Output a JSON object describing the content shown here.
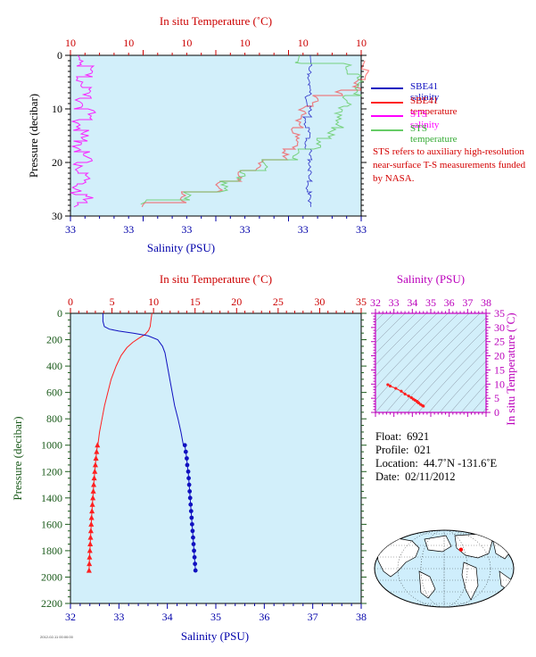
{
  "chart_data": [
    {
      "type": "line",
      "panel": "surface-profile",
      "top_xlabel": "In situ Temperature (˚C)",
      "top_ticklabels": [
        "10",
        "10",
        "10",
        "10",
        "10",
        "10"
      ],
      "bottom_xlabel": "Salinity (PSU)",
      "bottom_ticklabels": [
        "33",
        "33",
        "33",
        "33",
        "33",
        "33"
      ],
      "ylabel": "Pressure (decibar)",
      "y_ticks": [
        0,
        10,
        20,
        30
      ],
      "ylim": [
        0,
        30
      ],
      "series": [
        {
          "name": "SBE41 salinity",
          "axis": "bottom",
          "color": "#1010c0",
          "points": [
            [
              3.3,
              1.5
            ],
            [
              3.27,
              3.5
            ],
            [
              3.3,
              5.5
            ],
            [
              3.25,
              7.5
            ],
            [
              3.3,
              9.5
            ],
            [
              3.22,
              11.5
            ],
            [
              3.28,
              13.5
            ],
            [
              3.24,
              15.5
            ],
            [
              3.3,
              17.5
            ],
            [
              3.29,
              19.5
            ],
            [
              3.3,
              21.5
            ],
            [
              3.26,
              23.5
            ],
            [
              3.29,
              25.5
            ],
            [
              3.3,
              27.5
            ]
          ]
        },
        {
          "name": "SBE41 temperature",
          "axis": "top",
          "color": "#ff2020",
          "points": [
            [
              4.05,
              2.5
            ],
            [
              3.95,
              4.5
            ],
            [
              3.7,
              6.5
            ],
            [
              3.35,
              7.5
            ],
            [
              3.2,
              9.5
            ],
            [
              3.15,
              11.5
            ],
            [
              3.1,
              13.5
            ],
            [
              3.1,
              15.5
            ],
            [
              2.95,
              17.5
            ],
            [
              2.6,
              19.5
            ],
            [
              2.3,
              21.5
            ],
            [
              2.05,
              23.5
            ],
            [
              1.55,
              25.5
            ],
            [
              1.0,
              27.5
            ]
          ]
        },
        {
          "name": "STS salinity",
          "axis": "bottom",
          "color": "#ff00ff",
          "points": [
            [
              0.1,
              0.5
            ],
            [
              0.25,
              2
            ],
            [
              0.1,
              4
            ],
            [
              0.25,
              6
            ],
            [
              0.1,
              8
            ],
            [
              0.3,
              10
            ],
            [
              0.1,
              12
            ],
            [
              0.2,
              14
            ],
            [
              0.08,
              16
            ],
            [
              0.25,
              18
            ],
            [
              0.1,
              20
            ],
            [
              0.2,
              22
            ],
            [
              0.08,
              24
            ],
            [
              0.25,
              26
            ],
            [
              0.1,
              27.5
            ]
          ]
        },
        {
          "name": "STS temperature",
          "axis": "top",
          "color": "#66cc66",
          "points": [
            [
              3.15,
              1.2
            ],
            [
              3.8,
              1.5
            ],
            [
              4.0,
              3.5
            ],
            [
              3.95,
              5.5
            ],
            [
              3.8,
              7.5
            ],
            [
              3.7,
              9.5
            ],
            [
              3.7,
              11.5
            ],
            [
              3.6,
              13.5
            ],
            [
              3.4,
              15.5
            ],
            [
              3.1,
              17.5
            ],
            [
              2.65,
              19.5
            ],
            [
              2.35,
              21.5
            ],
            [
              2.1,
              23.5
            ],
            [
              1.6,
              25.5
            ],
            [
              1.0,
              27.0
            ]
          ]
        }
      ],
      "legend_position": "right",
      "note": "STS refers to auxiliary high-resolution near-surface T-S measurements funded by NASA."
    },
    {
      "type": "line",
      "panel": "full-profile",
      "top_xlabel": "In situ Temperature (˚C)",
      "top_ticklabels": [
        "0",
        "5",
        "10",
        "15",
        "20",
        "25",
        "30",
        "35"
      ],
      "xlim_top": [
        0,
        35
      ],
      "bottom_xlabel": "Salinity (PSU)",
      "bottom_ticklabels": [
        "32",
        "33",
        "34",
        "35",
        "36",
        "37",
        "38"
      ],
      "xlim_bottom": [
        32,
        38
      ],
      "ylabel": "Pressure (decibar)",
      "y_ticks": [
        0,
        200,
        400,
        600,
        800,
        1000,
        1200,
        1400,
        1600,
        1800,
        2000,
        2200
      ],
      "ylim": [
        0,
        2200
      ],
      "temperature": {
        "color": "#ff2020",
        "profile": [
          [
            9.8,
            0
          ],
          [
            9.7,
            50
          ],
          [
            9.6,
            100
          ],
          [
            9.4,
            130
          ],
          [
            9.0,
            160
          ],
          [
            8.2,
            190
          ],
          [
            7.5,
            220
          ],
          [
            6.8,
            260
          ],
          [
            6.1,
            320
          ],
          [
            5.5,
            400
          ],
          [
            4.9,
            500
          ],
          [
            4.5,
            600
          ],
          [
            4.1,
            700
          ],
          [
            3.8,
            800
          ],
          [
            3.5,
            900
          ],
          [
            3.3,
            1000
          ]
        ],
        "markers": [
          [
            3.25,
            1000
          ],
          [
            3.15,
            1050
          ],
          [
            3.07,
            1100
          ],
          [
            3.0,
            1150
          ],
          [
            2.93,
            1200
          ],
          [
            2.86,
            1250
          ],
          [
            2.8,
            1300
          ],
          [
            2.75,
            1350
          ],
          [
            2.7,
            1400
          ],
          [
            2.64,
            1450
          ],
          [
            2.59,
            1500
          ],
          [
            2.54,
            1550
          ],
          [
            2.5,
            1600
          ],
          [
            2.46,
            1650
          ],
          [
            2.42,
            1700
          ],
          [
            2.38,
            1750
          ],
          [
            2.34,
            1800
          ],
          [
            2.3,
            1850
          ],
          [
            2.27,
            1900
          ],
          [
            2.24,
            1950
          ]
        ]
      },
      "salinity": {
        "color": "#1010c0",
        "profile": [
          [
            32.67,
            0
          ],
          [
            32.67,
            60
          ],
          [
            32.7,
            100
          ],
          [
            32.8,
            120
          ],
          [
            33.0,
            135
          ],
          [
            33.3,
            150
          ],
          [
            33.6,
            170
          ],
          [
            33.8,
            200
          ],
          [
            33.9,
            250
          ],
          [
            33.95,
            300
          ],
          [
            34.0,
            400
          ],
          [
            34.05,
            500
          ],
          [
            34.1,
            600
          ],
          [
            34.15,
            700
          ],
          [
            34.22,
            800
          ],
          [
            34.28,
            900
          ],
          [
            34.33,
            1000
          ]
        ],
        "markers": [
          [
            34.36,
            1000
          ],
          [
            34.38,
            1050
          ],
          [
            34.4,
            1100
          ],
          [
            34.41,
            1150
          ],
          [
            34.43,
            1200
          ],
          [
            34.44,
            1250
          ],
          [
            34.45,
            1300
          ],
          [
            34.46,
            1350
          ],
          [
            34.47,
            1400
          ],
          [
            34.48,
            1450
          ],
          [
            34.49,
            1500
          ],
          [
            34.5,
            1550
          ],
          [
            34.51,
            1600
          ],
          [
            34.52,
            1650
          ],
          [
            34.53,
            1700
          ],
          [
            34.54,
            1750
          ],
          [
            34.55,
            1800
          ],
          [
            34.56,
            1850
          ],
          [
            34.57,
            1900
          ],
          [
            34.58,
            1950
          ]
        ]
      }
    },
    {
      "type": "scatter",
      "panel": "ts-diagram",
      "top_xlabel": "Salinity (PSU)",
      "top_ticklabels": [
        "32",
        "33",
        "34",
        "35",
        "36",
        "37",
        "38"
      ],
      "xlim": [
        32,
        38
      ],
      "right_ylabel": "In situ Temperature (˚C)",
      "right_ticklabels": [
        "0",
        "5",
        "10",
        "15",
        "20",
        "25",
        "30",
        "35"
      ],
      "ylim": [
        0,
        35
      ],
      "color": "#ff2020",
      "points": [
        [
          32.67,
          9.8
        ],
        [
          32.8,
          9.3
        ],
        [
          33.1,
          8.5
        ],
        [
          33.4,
          7.5
        ],
        [
          33.6,
          6.5
        ],
        [
          33.8,
          5.8
        ],
        [
          33.95,
          5.2
        ],
        [
          34.05,
          4.7
        ],
        [
          34.15,
          4.3
        ],
        [
          34.25,
          3.9
        ],
        [
          34.3,
          3.6
        ],
        [
          34.35,
          3.3
        ],
        [
          34.45,
          2.8
        ],
        [
          34.55,
          2.4
        ],
        [
          34.6,
          2.2
        ]
      ]
    }
  ],
  "info": {
    "float_label": "Float:",
    "float_value": "6921",
    "profile_label": "Profile:",
    "profile_value": "021",
    "location_label": "Location:",
    "location_value": "44.7˚N  -131.6˚E",
    "date_label": "Date:",
    "date_value": "02/11/2012"
  },
  "map": {
    "float_lat": 44.7,
    "float_lon": -131.6,
    "marker_color": "#ff0000"
  },
  "footer_text": "2012-02-11 00:00:00",
  "colors": {
    "plot_bg": "#d2effa",
    "temperature_axis": "#cc0000",
    "salinity_axis": "#0000aa",
    "pressure_axis": "#1a5a1a",
    "ts_axis": "#bb00bb"
  }
}
